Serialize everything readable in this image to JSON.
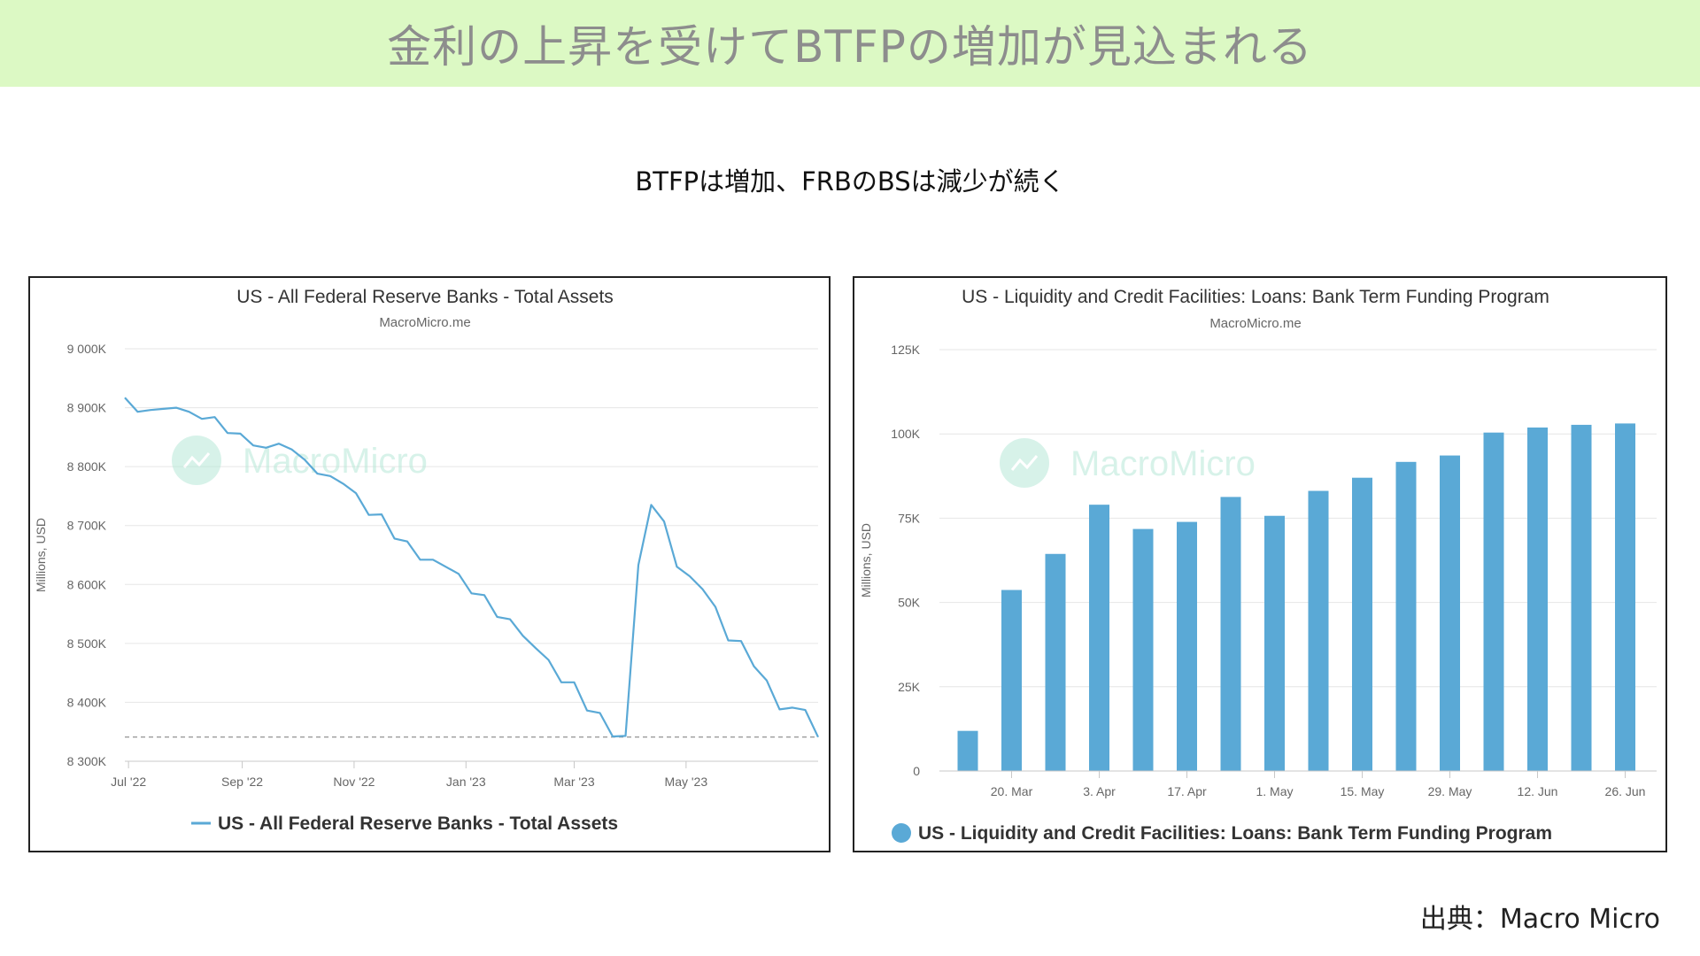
{
  "banner": {
    "title": "金利の上昇を受けてBTFPの増加が見込まれる"
  },
  "subtitle": "BTFPは増加、FRBのBSは減少が続く",
  "source": "出典：Macro Micro",
  "colors": {
    "banner_bg": "#dcf9c4",
    "line": "#5aa9d6",
    "bar": "#5aa9d6",
    "watermark": "#b7e8d8"
  },
  "chart_data": [
    {
      "type": "line",
      "title": "US - All Federal Reserve Banks - Total Assets",
      "subtitle": "MacroMicro.me",
      "watermark": "MacroMicro",
      "ylabel": "Millions, USD",
      "ylim": [
        8300,
        9000
      ],
      "yticks": [
        {
          "value": 9000,
          "label": "9 000K"
        },
        {
          "value": 8900,
          "label": "8 900K"
        },
        {
          "value": 8800,
          "label": "8 800K"
        },
        {
          "value": 8700,
          "label": "8 700K"
        },
        {
          "value": 8600,
          "label": "8 600K"
        },
        {
          "value": 8500,
          "label": "8 500K"
        },
        {
          "value": 8400,
          "label": "8 400K"
        },
        {
          "value": 8300,
          "label": "8 300K"
        }
      ],
      "xlim": [
        "2022-06-29",
        "2023-07-12"
      ],
      "xticks": [
        {
          "date": "2022-07-01",
          "label": "Jul '22"
        },
        {
          "date": "2022-09-01",
          "label": "Sep '22"
        },
        {
          "date": "2022-11-01",
          "label": "Nov '22"
        },
        {
          "date": "2023-01-01",
          "label": "Jan '23"
        },
        {
          "date": "2023-03-01",
          "label": "Mar '23"
        },
        {
          "date": "2023-05-01",
          "label": "May '23"
        }
      ],
      "reference_line": 8341,
      "legend": "US - All Federal Reserve Banks - Total Assets",
      "series": [
        {
          "name": "US - All Federal Reserve Banks - Total Assets",
          "points": [
            [
              "2022-06-29",
              8917
            ],
            [
              "2022-07-06",
              8893
            ],
            [
              "2022-07-13",
              8896
            ],
            [
              "2022-07-20",
              8898
            ],
            [
              "2022-07-27",
              8900
            ],
            [
              "2022-08-03",
              8893
            ],
            [
              "2022-08-10",
              8881
            ],
            [
              "2022-08-17",
              8884
            ],
            [
              "2022-08-24",
              8857
            ],
            [
              "2022-08-31",
              8856
            ],
            [
              "2022-09-07",
              8836
            ],
            [
              "2022-09-14",
              8832
            ],
            [
              "2022-09-21",
              8839
            ],
            [
              "2022-09-28",
              8829
            ],
            [
              "2022-10-05",
              8812
            ],
            [
              "2022-10-12",
              8788
            ],
            [
              "2022-10-19",
              8784
            ],
            [
              "2022-10-26",
              8771
            ],
            [
              "2022-11-02",
              8755
            ],
            [
              "2022-11-09",
              8718
            ],
            [
              "2022-11-16",
              8719
            ],
            [
              "2022-11-23",
              8678
            ],
            [
              "2022-11-30",
              8673
            ],
            [
              "2022-12-07",
              8642
            ],
            [
              "2022-12-14",
              8642
            ],
            [
              "2022-12-21",
              8630
            ],
            [
              "2022-12-28",
              8618
            ],
            [
              "2023-01-04",
              8585
            ],
            [
              "2023-01-11",
              8582
            ],
            [
              "2023-01-18",
              8545
            ],
            [
              "2023-01-25",
              8541
            ],
            [
              "2023-02-01",
              8513
            ],
            [
              "2023-02-08",
              8492
            ],
            [
              "2023-02-15",
              8472
            ],
            [
              "2023-02-22",
              8434
            ],
            [
              "2023-03-01",
              8434
            ],
            [
              "2023-03-08",
              8386
            ],
            [
              "2023-03-15",
              8382
            ],
            [
              "2023-03-22",
              8342
            ],
            [
              "2023-03-29",
              8343
            ],
            [
              "2023-04-05",
              8633
            ],
            [
              "2023-04-12",
              8735
            ],
            [
              "2023-04-19",
              8707
            ],
            [
              "2023-04-26",
              8630
            ],
            [
              "2023-05-03",
              8614
            ],
            [
              "2023-05-10",
              8592
            ],
            [
              "2023-05-17",
              8562
            ],
            [
              "2023-05-24",
              8505
            ],
            [
              "2023-05-31",
              8504
            ],
            [
              "2023-06-07",
              8461
            ],
            [
              "2023-06-14",
              8437
            ],
            [
              "2023-06-21",
              8388
            ],
            [
              "2023-06-28",
              8391
            ],
            [
              "2023-07-05",
              8387
            ],
            [
              "2023-07-12",
              8341
            ]
          ]
        }
      ]
    },
    {
      "type": "bar",
      "title": "US - Liquidity and Credit Facilities: Loans: Bank Term Funding Program",
      "subtitle": "MacroMicro.me",
      "watermark": "MacroMicro",
      "ylabel": "Millions, USD",
      "ylim": [
        0,
        125000
      ],
      "yticks": [
        {
          "value": 125000,
          "label": "125K"
        },
        {
          "value": 100000,
          "label": "100K"
        },
        {
          "value": 75000,
          "label": "75K"
        },
        {
          "value": 50000,
          "label": "50K"
        },
        {
          "value": 25000,
          "label": "25K"
        },
        {
          "value": 0,
          "label": "0"
        }
      ],
      "xtick_labels": [
        {
          "index": 1,
          "label": "20. Mar"
        },
        {
          "index": 3,
          "label": "3. Apr"
        },
        {
          "index": 5,
          "label": "17. Apr"
        },
        {
          "index": 7,
          "label": "1. May"
        },
        {
          "index": 9,
          "label": "15. May"
        },
        {
          "index": 11,
          "label": "29. May"
        },
        {
          "index": 13,
          "label": "12. Jun"
        },
        {
          "index": 15,
          "label": "26. Jun"
        }
      ],
      "legend": "US - Liquidity and Credit Facilities: Loans: Bank Term Funding Program",
      "categories": [
        "2023-03-15",
        "2023-03-22",
        "2023-03-29",
        "2023-04-05",
        "2023-04-12",
        "2023-04-19",
        "2023-04-26",
        "2023-05-03",
        "2023-05-10",
        "2023-05-17",
        "2023-05-24",
        "2023-05-31",
        "2023-06-07",
        "2023-06-14",
        "2023-06-21",
        "2023-06-28"
      ],
      "series": [
        {
          "name": "US - Liquidity and Credit Facilities: Loans: Bank Term Funding Program",
          "values": [
            11900,
            53700,
            64400,
            79000,
            71800,
            73900,
            81300,
            75700,
            83100,
            87000,
            91700,
            93600,
            100400,
            101900,
            102700,
            103100
          ]
        }
      ]
    }
  ]
}
